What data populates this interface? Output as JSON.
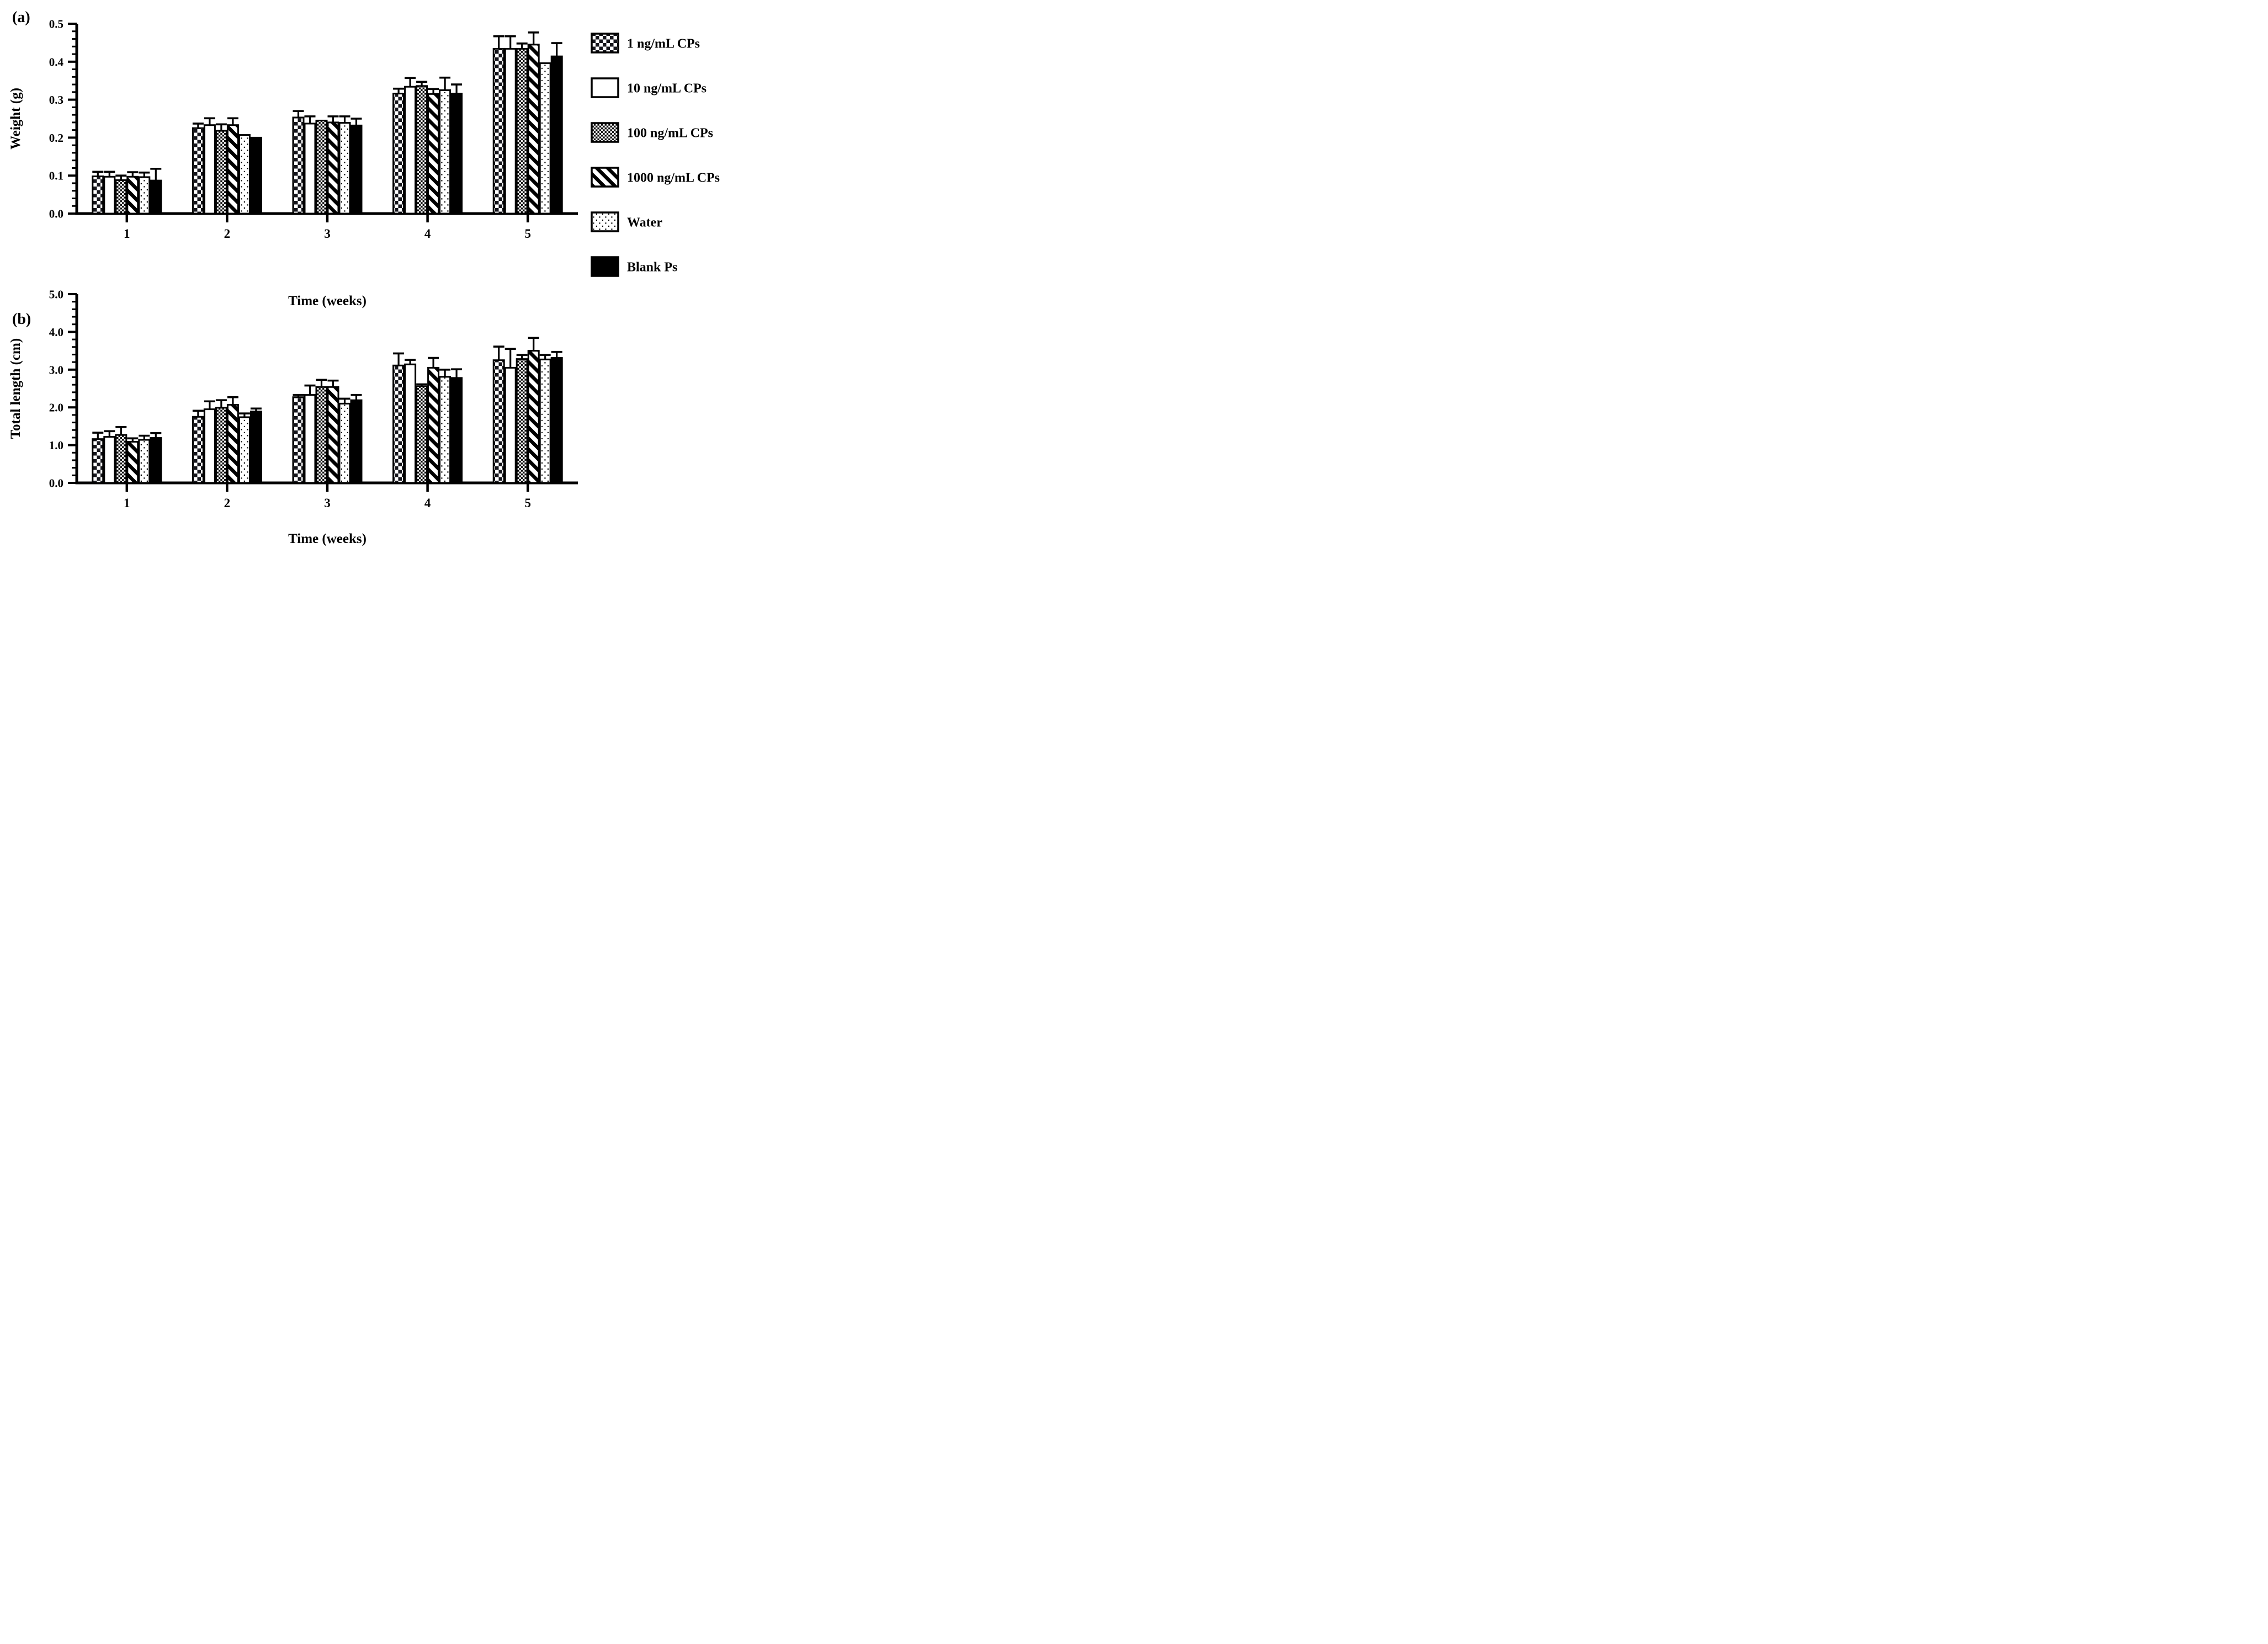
{
  "figure": {
    "background": "#ffffff",
    "ink_color": "#000000",
    "panels": [
      {
        "panel_label": "(a)"
      },
      {
        "panel_label": "(b)"
      }
    ]
  },
  "legend": {
    "entries": [
      {
        "label": "1 ng/mL CPs",
        "pattern": "checker-large"
      },
      {
        "label": "10 ng/mL CPs",
        "pattern": "white"
      },
      {
        "label": "100 ng/mL CPs",
        "pattern": "checker-fine"
      },
      {
        "label": "1000 ng/mL CPs",
        "pattern": "diagonal-stripes"
      },
      {
        "label": "Water",
        "pattern": "dots"
      },
      {
        "label": "Blank Ps",
        "pattern": "solid"
      }
    ]
  },
  "chart_data": [
    {
      "type": "bar",
      "panel": "a",
      "title": "",
      "ylabel": "Weight (g)",
      "xlabel": "Time (weeks)",
      "ylim": [
        0,
        0.5
      ],
      "ytick_step": 0.1,
      "ytick_decimals": 1,
      "minor_ticks_per_major": 4,
      "grid": false,
      "error_bars": "upper-only",
      "legend_position": "right",
      "categories": [
        "1",
        "2",
        "3",
        "4",
        "5"
      ],
      "series": [
        {
          "name": "1 ng/mL CPs",
          "pattern": "checker-large",
          "values": [
            0.098,
            0.225,
            0.253,
            0.316,
            0.434
          ],
          "errors": [
            0.012,
            0.012,
            0.017,
            0.013,
            0.033
          ]
        },
        {
          "name": "10 ng/mL CPs",
          "pattern": "white",
          "values": [
            0.097,
            0.233,
            0.237,
            0.334,
            0.434
          ],
          "errors": [
            0.013,
            0.018,
            0.019,
            0.023,
            0.033
          ]
        },
        {
          "name": "100 ng/mL CPs",
          "pattern": "checker-fine",
          "values": [
            0.088,
            0.218,
            0.245,
            0.336,
            0.434
          ],
          "errors": [
            0.012,
            0.017,
            0,
            0.011,
            0.014
          ]
        },
        {
          "name": "1000 ng/mL CPs",
          "pattern": "diagonal-stripes",
          "values": [
            0.097,
            0.233,
            0.24,
            0.315,
            0.445
          ],
          "errors": [
            0.012,
            0.018,
            0.016,
            0.013,
            0.032
          ]
        },
        {
          "name": "Water",
          "pattern": "dots",
          "values": [
            0.096,
            0.207,
            0.239,
            0.325,
            0.396
          ],
          "errors": [
            0.012,
            0,
            0.017,
            0.033,
            0
          ]
        },
        {
          "name": "Blank Ps",
          "pattern": "solid",
          "values": [
            0.087,
            0.2,
            0.232,
            0.316,
            0.414
          ],
          "errors": [
            0.031,
            0,
            0.018,
            0.024,
            0.035
          ]
        }
      ]
    },
    {
      "type": "bar",
      "panel": "b",
      "title": "",
      "ylabel": "Total length (cm)",
      "xlabel": "Time (weeks)",
      "ylim": [
        0,
        5
      ],
      "ytick_step": 1,
      "ytick_decimals": 1,
      "minor_ticks_per_major": 4,
      "grid": false,
      "error_bars": "upper-only",
      "categories": [
        "1",
        "2",
        "3",
        "4",
        "5"
      ],
      "series": [
        {
          "name": "1 ng/mL CPs",
          "pattern": "checker-large",
          "values": [
            1.16,
            1.75,
            2.27,
            3.11,
            3.25
          ],
          "errors": [
            0.17,
            0.16,
            0.06,
            0.32,
            0.36
          ]
        },
        {
          "name": "10 ng/mL CPs",
          "pattern": "white",
          "values": [
            1.22,
            1.95,
            2.33,
            3.14,
            3.05
          ],
          "errors": [
            0.15,
            0.21,
            0.25,
            0.12,
            0.5
          ]
        },
        {
          "name": "100 ng/mL CPs",
          "pattern": "checker-fine",
          "values": [
            1.27,
            1.99,
            2.54,
            2.56,
            3.28
          ],
          "errors": [
            0.21,
            0.2,
            0.19,
            0.05,
            0.11
          ]
        },
        {
          "name": "1000 ng/mL CPs",
          "pattern": "diagonal-stripes",
          "values": [
            1.09,
            2.07,
            2.54,
            3.05,
            3.5
          ],
          "errors": [
            0.09,
            0.2,
            0.17,
            0.26,
            0.34
          ]
        },
        {
          "name": "Water",
          "pattern": "dots",
          "values": [
            1.14,
            1.74,
            2.1,
            2.81,
            3.27
          ],
          "errors": [
            0.11,
            0.1,
            0.13,
            0.19,
            0.12
          ]
        },
        {
          "name": "Blank Ps",
          "pattern": "solid",
          "values": [
            1.19,
            1.89,
            2.19,
            2.78,
            3.31
          ],
          "errors": [
            0.13,
            0.08,
            0.14,
            0.23,
            0.16
          ]
        }
      ]
    }
  ]
}
